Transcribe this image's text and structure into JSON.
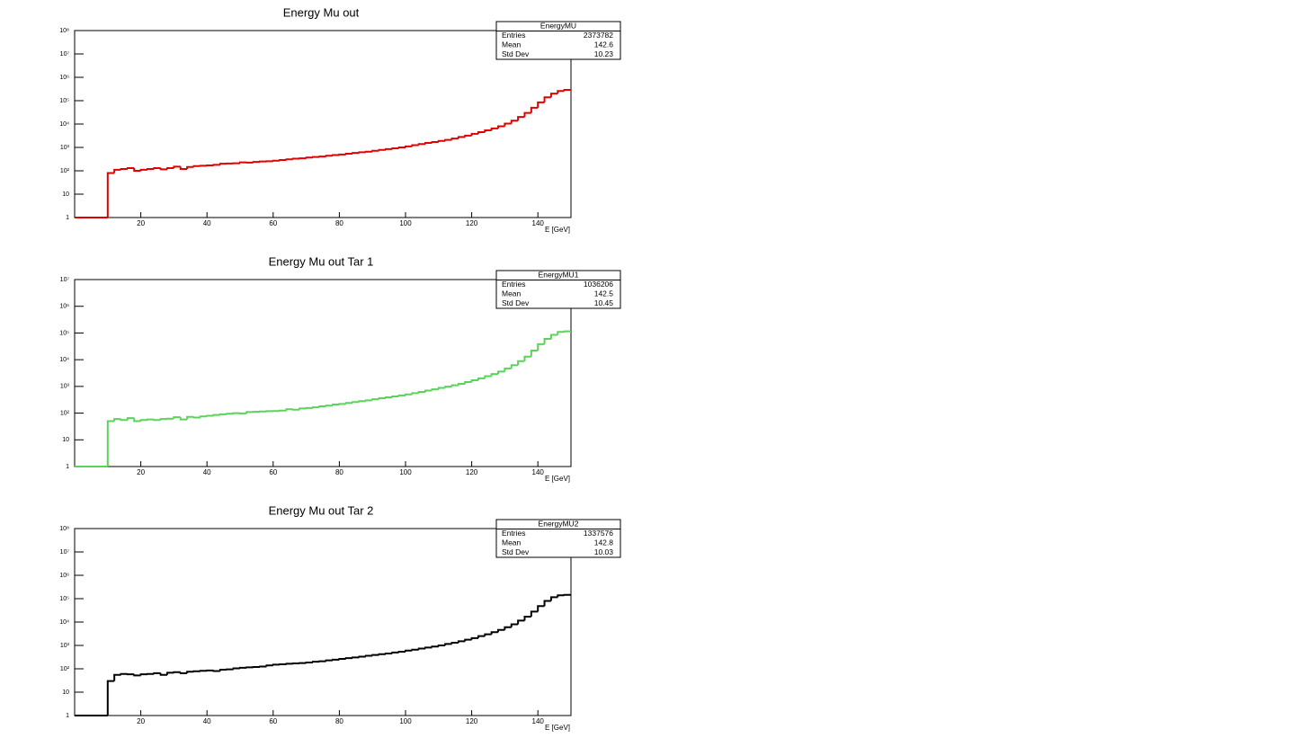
{
  "chart_data": [
    {
      "type": "histogram",
      "title": "Energy Mu out",
      "xlabel": "E [GeV]",
      "color": "#e00000",
      "log_y": true,
      "xlim": [
        0,
        150
      ],
      "ylim": [
        1,
        100000000
      ],
      "xticks": [
        20,
        40,
        60,
        80,
        100,
        120,
        140
      ],
      "yticks": [
        1,
        10,
        {
          "value": 100,
          "label": "10²"
        },
        {
          "value": 1000,
          "label": "10³"
        },
        {
          "value": 10000,
          "label": "10⁴"
        },
        {
          "value": 100000,
          "label": "10⁵"
        },
        {
          "value": 1000000,
          "label": "10⁶"
        },
        {
          "value": 10000000,
          "label": "10⁷"
        },
        {
          "value": 100000000,
          "label": "10⁸"
        }
      ],
      "stats": {
        "name": "EnergyMU",
        "rows": [
          [
            "Entries",
            2373782
          ],
          [
            "Mean",
            142.6
          ],
          [
            "Std Dev",
            10.23
          ]
        ]
      },
      "bins": [
        0,
        10,
        12,
        14,
        16,
        18,
        20,
        22,
        24,
        26,
        28,
        30,
        32,
        34,
        36,
        38,
        40,
        42,
        44,
        46,
        48,
        50,
        52,
        54,
        56,
        58,
        60,
        62,
        64,
        66,
        68,
        70,
        72,
        74,
        76,
        78,
        80,
        82,
        84,
        86,
        88,
        90,
        92,
        94,
        96,
        98,
        100,
        102,
        104,
        106,
        108,
        110,
        112,
        114,
        116,
        118,
        120,
        122,
        124,
        126,
        128,
        130,
        132,
        134,
        136,
        138,
        140,
        142,
        144,
        146,
        148,
        150
      ],
      "values": [
        0,
        80,
        110,
        120,
        130,
        100,
        110,
        120,
        130,
        115,
        130,
        150,
        120,
        145,
        160,
        165,
        170,
        180,
        200,
        205,
        210,
        230,
        225,
        240,
        250,
        255,
        270,
        290,
        310,
        330,
        340,
        370,
        390,
        410,
        440,
        470,
        500,
        540,
        580,
        620,
        660,
        720,
        780,
        850,
        920,
        1000,
        1100,
        1250,
        1400,
        1550,
        1700,
        1900,
        2100,
        2400,
        2800,
        3200,
        3800,
        4500,
        5400,
        6500,
        8000,
        10500,
        14000,
        20000,
        30000,
        50000,
        85000,
        140000,
        200000,
        260000,
        290000
      ]
    },
    {
      "type": "histogram",
      "title": "Energy Mu out Tar 1",
      "xlabel": "E [GeV]",
      "color": "#5ad35a",
      "log_y": true,
      "xlim": [
        0,
        150
      ],
      "ylim": [
        1,
        10000000
      ],
      "xticks": [
        20,
        40,
        60,
        80,
        100,
        120,
        140
      ],
      "yticks": [
        1,
        10,
        {
          "value": 100,
          "label": "10²"
        },
        {
          "value": 1000,
          "label": "10³"
        },
        {
          "value": 10000,
          "label": "10⁴"
        },
        {
          "value": 100000,
          "label": "10⁵"
        },
        {
          "value": 1000000,
          "label": "10⁶"
        },
        {
          "value": 10000000,
          "label": "10⁷"
        }
      ],
      "stats": {
        "name": "EnergyMU1",
        "rows": [
          [
            "Entries",
            1036206
          ],
          [
            "Mean",
            142.5
          ],
          [
            "Std Dev",
            10.45
          ]
        ]
      },
      "bins": [
        0,
        10,
        12,
        14,
        16,
        18,
        20,
        22,
        24,
        26,
        28,
        30,
        32,
        34,
        36,
        38,
        40,
        42,
        44,
        46,
        48,
        50,
        52,
        54,
        56,
        58,
        60,
        62,
        64,
        66,
        68,
        70,
        72,
        74,
        76,
        78,
        80,
        82,
        84,
        86,
        88,
        90,
        92,
        94,
        96,
        98,
        100,
        102,
        104,
        106,
        108,
        110,
        112,
        114,
        116,
        118,
        120,
        122,
        124,
        126,
        128,
        130,
        132,
        134,
        136,
        138,
        140,
        142,
        144,
        146,
        148,
        150
      ],
      "values": [
        0,
        50,
        60,
        55,
        65,
        50,
        55,
        58,
        55,
        60,
        62,
        70,
        58,
        72,
        68,
        75,
        80,
        85,
        90,
        95,
        100,
        98,
        110,
        112,
        115,
        118,
        120,
        125,
        140,
        135,
        150,
        155,
        165,
        180,
        190,
        210,
        220,
        240,
        260,
        280,
        300,
        330,
        360,
        390,
        420,
        460,
        500,
        560,
        620,
        700,
        780,
        880,
        980,
        1100,
        1250,
        1450,
        1700,
        2000,
        2400,
        2900,
        3600,
        4700,
        6200,
        8800,
        13000,
        22000,
        38000,
        60000,
        85000,
        110000,
        115000
      ]
    },
    {
      "type": "histogram",
      "title": "Energy Mu out Tar 2",
      "xlabel": "E [GeV]",
      "color": "#000000",
      "log_y": true,
      "xlim": [
        0,
        150
      ],
      "ylim": [
        1,
        100000000
      ],
      "xticks": [
        20,
        40,
        60,
        80,
        100,
        120,
        140
      ],
      "yticks": [
        1,
        10,
        {
          "value": 100,
          "label": "10²"
        },
        {
          "value": 1000,
          "label": "10³"
        },
        {
          "value": 10000,
          "label": "10⁴"
        },
        {
          "value": 100000,
          "label": "10⁵"
        },
        {
          "value": 1000000,
          "label": "10⁶"
        },
        {
          "value": 10000000,
          "label": "10⁷"
        },
        {
          "value": 100000000,
          "label": "10⁸"
        }
      ],
      "stats": {
        "name": "EnergyMU2",
        "rows": [
          [
            "Entries",
            1337576
          ],
          [
            "Mean",
            142.8
          ],
          [
            "Std Dev",
            10.03
          ]
        ]
      },
      "bins": [
        0,
        10,
        12,
        14,
        16,
        18,
        20,
        22,
        24,
        26,
        28,
        30,
        32,
        34,
        36,
        38,
        40,
        42,
        44,
        46,
        48,
        50,
        52,
        54,
        56,
        58,
        60,
        62,
        64,
        66,
        68,
        70,
        72,
        74,
        76,
        78,
        80,
        82,
        84,
        86,
        88,
        90,
        92,
        94,
        96,
        98,
        100,
        102,
        104,
        106,
        108,
        110,
        112,
        114,
        116,
        118,
        120,
        122,
        124,
        126,
        128,
        130,
        132,
        134,
        136,
        138,
        140,
        142,
        144,
        146,
        148,
        150
      ],
      "values": [
        0,
        30,
        55,
        60,
        58,
        52,
        58,
        60,
        65,
        55,
        68,
        72,
        65,
        75,
        78,
        82,
        85,
        80,
        92,
        95,
        105,
        110,
        115,
        120,
        125,
        140,
        150,
        155,
        165,
        170,
        175,
        185,
        200,
        210,
        230,
        245,
        265,
        285,
        305,
        330,
        360,
        390,
        420,
        450,
        500,
        540,
        600,
        660,
        730,
        810,
        900,
        1000,
        1150,
        1300,
        1500,
        1750,
        2050,
        2500,
        3000,
        3700,
        4600,
        6000,
        8000,
        11500,
        17000,
        28000,
        48000,
        80000,
        115000,
        140000,
        145000
      ]
    }
  ]
}
